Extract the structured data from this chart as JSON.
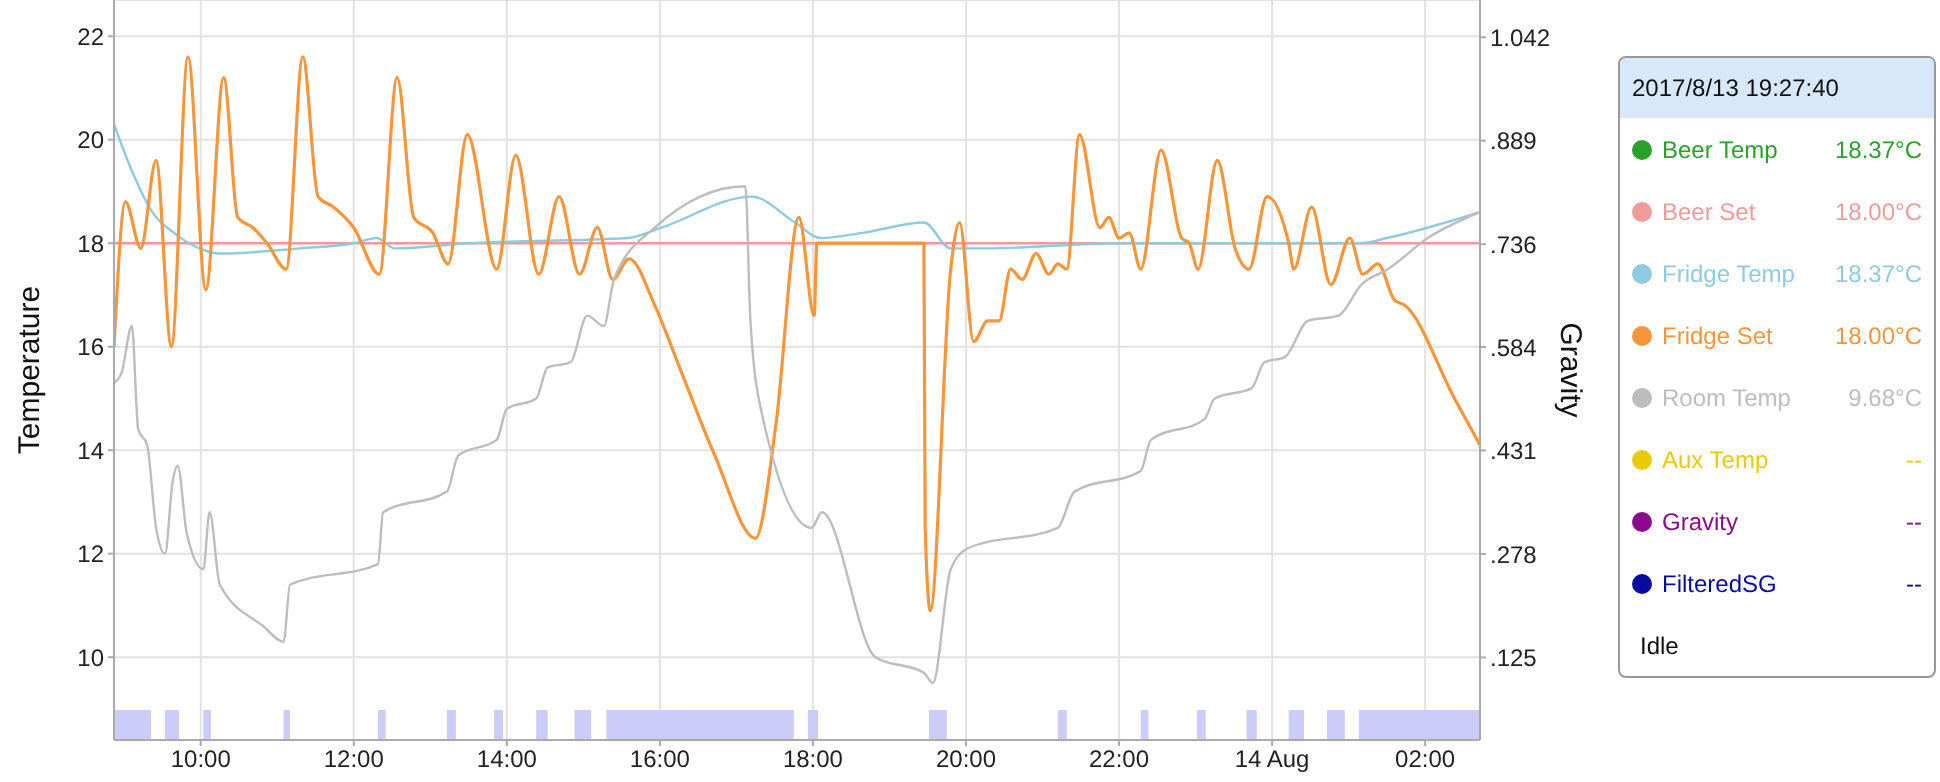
{
  "chart_data": {
    "type": "line",
    "ylabel": "Temperature",
    "y2label": "Gravity",
    "legend": "right",
    "grid": true,
    "xlim": [
      "2017-08-13T08:52",
      "2017-08-14T02:43"
    ],
    "xticks": [
      {
        "value": "2017-08-13T10:00",
        "label": "10:00"
      },
      {
        "value": "2017-08-13T12:00",
        "label": "12:00"
      },
      {
        "value": "2017-08-13T14:00",
        "label": "14:00"
      },
      {
        "value": "2017-08-13T16:00",
        "label": "16:00"
      },
      {
        "value": "2017-08-13T18:00",
        "label": "18:00"
      },
      {
        "value": "2017-08-13T20:00",
        "label": "20:00"
      },
      {
        "value": "2017-08-13T22:00",
        "label": "22:00"
      },
      {
        "value": "2017-08-14T00:00",
        "label": "14 Aug"
      },
      {
        "value": "2017-08-14T02:00",
        "label": "02:00"
      }
    ],
    "ylim": [
      8.4,
      22.7
    ],
    "yticks": [
      10,
      12,
      14,
      16,
      18,
      20,
      22
    ],
    "y2lim": [
      0.003,
      1.097
    ],
    "y2ticks": [
      {
        "value": 0.125,
        "label": ".125"
      },
      {
        "value": 0.278,
        "label": ".278"
      },
      {
        "value": 0.431,
        "label": ".431"
      },
      {
        "value": 0.584,
        "label": ".584"
      },
      {
        "value": 0.736,
        "label": ".736"
      },
      {
        "value": 0.889,
        "label": ".889"
      },
      {
        "value": 1.042,
        "label": "1.042"
      }
    ],
    "series": [
      {
        "name": "Beer Temp",
        "color": "#2ca02c"
      },
      {
        "name": "Beer Set",
        "color": "#f09a9a",
        "x": [
          "2017-08-13T08:52",
          "2017-08-14T02:43"
        ],
        "values": [
          18,
          18
        ]
      },
      {
        "name": "Fridge Temp",
        "color": "#8fcbe0",
        "x": [
          "2017-08-13T08:52",
          "2017-08-13T09:06",
          "2017-08-13T09:22",
          "2017-08-13T09:39",
          "2017-08-13T09:59",
          "2017-08-13T10:15",
          "2017-08-13T11:18",
          "2017-08-13T12:00",
          "2017-08-13T12:18",
          "2017-08-13T12:32",
          "2017-08-13T13:30",
          "2017-08-13T15:35",
          "2017-08-13T16:01",
          "2017-08-13T17:12",
          "2017-08-13T17:46",
          "2017-08-13T18:06",
          "2017-08-13T18:39",
          "2017-08-13T19:27",
          "2017-08-13T19:48",
          "2017-08-13T20:17",
          "2017-08-13T22:01",
          "2017-08-14T01:10",
          "2017-08-14T01:30",
          "2017-08-14T02:43"
        ],
        "values": [
          20.3,
          19.4,
          18.6,
          18.2,
          17.9,
          17.8,
          17.9,
          18.0,
          18.1,
          17.9,
          18.0,
          18.1,
          18.3,
          18.9,
          18.4,
          18.1,
          18.2,
          18.4,
          17.9,
          17.9,
          18.0,
          18.0,
          18.1,
          18.6
        ]
      },
      {
        "name": "Fridge Set",
        "color": "#f7953b",
        "x": [
          "2017-08-13T08:52",
          "2017-08-13T09:01",
          "2017-08-13T09:13",
          "2017-08-13T09:25",
          "2017-08-13T09:37",
          "2017-08-13T09:50",
          "2017-08-13T10:04",
          "2017-08-13T10:18",
          "2017-08-13T10:29",
          "2017-08-13T10:41",
          "2017-08-13T10:52",
          "2017-08-13T11:07",
          "2017-08-13T11:20",
          "2017-08-13T11:32",
          "2017-08-13T11:44",
          "2017-08-13T12:00",
          "2017-08-13T12:20",
          "2017-08-13T12:34",
          "2017-08-13T12:47",
          "2017-08-13T13:02",
          "2017-08-13T13:14",
          "2017-08-13T13:29",
          "2017-08-13T13:52",
          "2017-08-13T14:07",
          "2017-08-13T14:25",
          "2017-08-13T14:41",
          "2017-08-13T14:57",
          "2017-08-13T15:11",
          "2017-08-13T15:23",
          "2017-08-13T15:36",
          "2017-08-13T15:56",
          "2017-08-13T16:17",
          "2017-08-13T16:43",
          "2017-08-13T17:15",
          "2017-08-13T17:31",
          "2017-08-13T17:49",
          "2017-08-13T18:01",
          "2017-08-13T18:03",
          "2017-08-13T19:27",
          "2017-08-13T19:28",
          "2017-08-13T19:32",
          "2017-08-13T19:48",
          "2017-08-13T19:55",
          "2017-08-13T20:06",
          "2017-08-13T20:17",
          "2017-08-13T20:26",
          "2017-08-13T20:35",
          "2017-08-13T20:44",
          "2017-08-13T20:55",
          "2017-08-13T21:05",
          "2017-08-13T21:12",
          "2017-08-13T21:19",
          "2017-08-13T21:29",
          "2017-08-13T21:45",
          "2017-08-13T21:52",
          "2017-08-13T22:00",
          "2017-08-13T22:08",
          "2017-08-13T22:17",
          "2017-08-13T22:33",
          "2017-08-13T22:49",
          "2017-08-13T22:55",
          "2017-08-13T23:02",
          "2017-08-13T23:17",
          "2017-08-13T23:31",
          "2017-08-13T23:42",
          "2017-08-13T23:56",
          "2017-08-14T00:13",
          "2017-08-14T00:17",
          "2017-08-14T00:31",
          "2017-08-14T00:46",
          "2017-08-14T01:01",
          "2017-08-14T01:11",
          "2017-08-14T01:23",
          "2017-08-14T01:36",
          "2017-08-14T01:44",
          "2017-08-14T02:23",
          "2017-08-14T02:43"
        ],
        "values": [
          16.0,
          18.8,
          17.9,
          19.6,
          16.0,
          21.6,
          17.1,
          21.2,
          18.5,
          18.3,
          18.0,
          17.5,
          21.6,
          18.9,
          18.7,
          18.3,
          17.4,
          21.2,
          18.5,
          18.2,
          17.6,
          20.1,
          17.5,
          19.7,
          17.4,
          18.9,
          17.4,
          18.3,
          17.3,
          17.7,
          16.8,
          15.5,
          13.9,
          12.3,
          14.5,
          18.5,
          16.6,
          18.0,
          18.0,
          12.5,
          10.9,
          17.5,
          18.4,
          16.1,
          16.5,
          16.5,
          17.5,
          17.3,
          17.8,
          17.4,
          17.6,
          17.5,
          20.1,
          18.3,
          18.5,
          18.1,
          18.2,
          17.5,
          19.8,
          18.1,
          18.0,
          17.5,
          19.6,
          17.9,
          17.5,
          18.9,
          18.0,
          17.5,
          18.7,
          17.2,
          18.1,
          17.4,
          17.6,
          16.9,
          16.8,
          15.0,
          14.1
        ]
      },
      {
        "name": "Room Temp",
        "color": "#bdbdbd",
        "x": [
          "2017-08-13T08:52",
          "2017-08-13T08:58",
          "2017-08-13T09:06",
          "2017-08-13T09:11",
          "2017-08-13T09:18",
          "2017-08-13T09:25",
          "2017-08-13T09:32",
          "2017-08-13T09:38",
          "2017-08-13T09:42",
          "2017-08-13T09:49",
          "2017-08-13T10:02",
          "2017-08-13T10:07",
          "2017-08-13T10:15",
          "2017-08-13T10:49",
          "2017-08-13T11:05",
          "2017-08-13T11:10",
          "2017-08-13T12:19",
          "2017-08-13T12:23",
          "2017-08-13T13:13",
          "2017-08-13T13:22",
          "2017-08-13T13:52",
          "2017-08-13T14:00",
          "2017-08-13T14:23",
          "2017-08-13T14:32",
          "2017-08-13T14:50",
          "2017-08-13T15:03",
          "2017-08-13T15:16",
          "2017-08-13T15:24",
          "2017-08-13T15:56",
          "2017-08-13T17:07",
          "2017-08-13T17:11",
          "2017-08-13T17:20",
          "2017-08-13T17:59",
          "2017-08-13T18:07",
          "2017-08-13T18:49",
          "2017-08-13T19:27",
          "2017-08-13T19:34",
          "2017-08-13T19:48",
          "2017-08-13T20:01",
          "2017-08-13T21:12",
          "2017-08-13T21:25",
          "2017-08-13T22:17",
          "2017-08-13T22:25",
          "2017-08-13T23:07",
          "2017-08-13T23:15",
          "2017-08-13T23:44",
          "2017-08-13T23:54",
          "2017-08-14T00:10",
          "2017-08-14T00:28",
          "2017-08-14T00:52",
          "2017-08-14T01:10",
          "2017-08-14T01:31",
          "2017-08-14T02:02",
          "2017-08-14T02:43"
        ],
        "values": [
          15.3,
          15.5,
          16.4,
          14.4,
          14.1,
          12.5,
          12.0,
          13.4,
          13.7,
          12.4,
          11.7,
          12.8,
          11.4,
          10.6,
          10.3,
          11.4,
          11.8,
          12.8,
          13.2,
          13.9,
          14.2,
          14.8,
          15.0,
          15.6,
          15.7,
          16.6,
          16.4,
          17.3,
          18.3,
          19.1,
          16.5,
          14.7,
          12.5,
          12.8,
          10.0,
          9.7,
          9.5,
          11.7,
          12.1,
          12.5,
          13.2,
          13.6,
          14.2,
          14.6,
          15.0,
          15.2,
          15.7,
          15.8,
          16.5,
          16.6,
          17.2,
          17.5,
          18.1,
          18.6
        ]
      },
      {
        "name": "Aux Temp",
        "color": "#e8cc00"
      },
      {
        "name": "Gravity",
        "color": "#8b0a8b"
      },
      {
        "name": "FilteredSG",
        "color": "#0a0aa0"
      }
    ],
    "bands": [
      {
        "axis": "x",
        "from": "2017-08-13T08:52",
        "to": "2017-08-13T09:21",
        "color": "#ccccf8"
      },
      {
        "axis": "x",
        "from": "2017-08-13T09:32",
        "to": "2017-08-13T09:43",
        "color": "#ccccf8"
      },
      {
        "axis": "x",
        "from": "2017-08-13T10:02",
        "to": "2017-08-13T10:08",
        "color": "#ccccf8"
      },
      {
        "axis": "x",
        "from": "2017-08-13T11:05",
        "to": "2017-08-13T11:10",
        "color": "#ccccf8"
      },
      {
        "axis": "x",
        "from": "2017-08-13T12:19",
        "to": "2017-08-13T12:25",
        "color": "#ccccf8"
      },
      {
        "axis": "x",
        "from": "2017-08-13T13:13",
        "to": "2017-08-13T13:20",
        "color": "#ccccf8"
      },
      {
        "axis": "x",
        "from": "2017-08-13T13:50",
        "to": "2017-08-13T13:57",
        "color": "#ccccf8"
      },
      {
        "axis": "x",
        "from": "2017-08-13T14:23",
        "to": "2017-08-13T14:32",
        "color": "#ccccf8"
      },
      {
        "axis": "x",
        "from": "2017-08-13T14:53",
        "to": "2017-08-13T15:06",
        "color": "#ccccf8"
      },
      {
        "axis": "x",
        "from": "2017-08-13T15:18",
        "to": "2017-08-13T17:45",
        "color": "#ccccf8"
      },
      {
        "axis": "x",
        "from": "2017-08-13T17:56",
        "to": "2017-08-13T18:04",
        "color": "#ccccf8"
      },
      {
        "axis": "x",
        "from": "2017-08-13T19:31",
        "to": "2017-08-13T19:45",
        "color": "#ccccf8"
      },
      {
        "axis": "x",
        "from": "2017-08-13T21:12",
        "to": "2017-08-13T21:19",
        "color": "#ccccf8"
      },
      {
        "axis": "x",
        "from": "2017-08-13T22:17",
        "to": "2017-08-13T22:23",
        "color": "#ccccf8"
      },
      {
        "axis": "x",
        "from": "2017-08-13T23:01",
        "to": "2017-08-13T23:08",
        "color": "#ccccf8"
      },
      {
        "axis": "x",
        "from": "2017-08-13T23:40",
        "to": "2017-08-13T23:48",
        "color": "#ccccf8"
      },
      {
        "axis": "x",
        "from": "2017-08-14T00:13",
        "to": "2017-08-14T00:25",
        "color": "#ccccf8"
      },
      {
        "axis": "x",
        "from": "2017-08-14T00:43",
        "to": "2017-08-14T00:57",
        "color": "#ccccf8"
      },
      {
        "axis": "x",
        "from": "2017-08-14T01:08",
        "to": "2017-08-14T02:43",
        "color": "#ccccf8"
      }
    ],
    "annotations": [
      "2017/8/13 19:27:40",
      "18.37°C",
      "18.00°C",
      "18.37°C",
      "18.00°C",
      "9.68°C",
      "--",
      "--",
      "--",
      "Idle"
    ]
  }
}
